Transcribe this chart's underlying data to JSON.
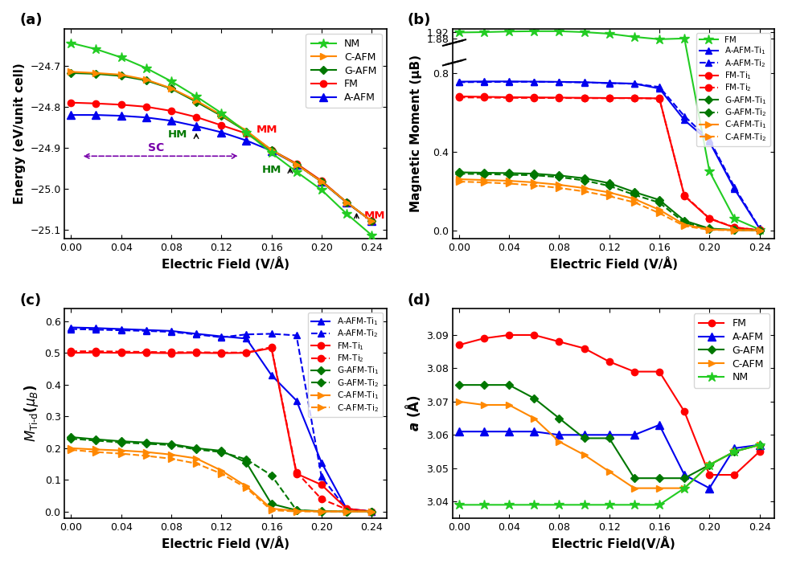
{
  "ef": [
    0.0,
    0.02,
    0.04,
    0.06,
    0.08,
    0.1,
    0.12,
    0.14,
    0.16,
    0.18,
    0.2,
    0.22,
    0.24
  ],
  "panel_a": {
    "NM": [
      -24.645,
      -24.66,
      -24.68,
      -24.706,
      -24.738,
      -24.775,
      -24.815,
      -24.862,
      -24.912,
      -24.958,
      -25.002,
      -25.06,
      -25.112
    ],
    "C-AFM": [
      -24.715,
      -24.718,
      -24.722,
      -24.734,
      -24.755,
      -24.785,
      -24.82,
      -24.858,
      -24.905,
      -24.94,
      -24.982,
      -25.032,
      -25.078
    ],
    "G-AFM": [
      -24.718,
      -24.72,
      -24.725,
      -24.736,
      -24.756,
      -24.788,
      -24.822,
      -24.86,
      -24.905,
      -24.94,
      -24.982,
      -25.032,
      -25.078
    ],
    "FM": [
      -24.79,
      -24.792,
      -24.795,
      -24.8,
      -24.81,
      -24.825,
      -24.845,
      -24.865,
      -24.905,
      -24.938,
      -24.98,
      -25.032,
      -25.078
    ],
    "A-AFM": [
      -24.82,
      -24.82,
      -24.822,
      -24.826,
      -24.834,
      -24.847,
      -24.862,
      -24.882,
      -24.907,
      -24.94,
      -24.982,
      -25.033,
      -25.078
    ],
    "xlabel": "Electric Field (V/Å)",
    "ylabel": "Energy (eV/unit cell)",
    "ylim": [
      -25.12,
      -24.61
    ],
    "yticks": [
      -25.1,
      -25.0,
      -24.9,
      -24.8,
      -24.7
    ]
  },
  "panel_b": {
    "FM": [
      1.918,
      1.92,
      1.924,
      1.926,
      1.926,
      1.92,
      1.91,
      1.89,
      1.875,
      1.88,
      0.3,
      0.06,
      0.005
    ],
    "A-AFM-Ti1": [
      0.755,
      0.756,
      0.756,
      0.755,
      0.754,
      0.752,
      0.748,
      0.745,
      0.72,
      0.56,
      0.45,
      0.21,
      0.01
    ],
    "A-AFM-Ti2": [
      0.752,
      0.753,
      0.754,
      0.754,
      0.753,
      0.751,
      0.747,
      0.744,
      0.728,
      0.58,
      0.46,
      0.22,
      0.012
    ],
    "FM-Ti1": [
      0.68,
      0.678,
      0.676,
      0.675,
      0.674,
      0.673,
      0.672,
      0.672,
      0.67,
      0.175,
      0.06,
      0.015,
      0.002
    ],
    "FM-Ti2": [
      0.675,
      0.674,
      0.673,
      0.672,
      0.672,
      0.671,
      0.671,
      0.671,
      0.669,
      0.178,
      0.062,
      0.016,
      0.002
    ],
    "G-AFM-Ti1": [
      0.295,
      0.293,
      0.291,
      0.288,
      0.279,
      0.265,
      0.24,
      0.195,
      0.155,
      0.05,
      0.01,
      0.003,
      0.001
    ],
    "G-AFM-Ti2": [
      0.288,
      0.286,
      0.283,
      0.28,
      0.271,
      0.254,
      0.226,
      0.181,
      0.141,
      0.04,
      0.007,
      0.002,
      0.001
    ],
    "C-AFM-Ti1": [
      0.26,
      0.256,
      0.252,
      0.244,
      0.232,
      0.215,
      0.193,
      0.16,
      0.105,
      0.03,
      0.005,
      0.002,
      0.001
    ],
    "C-AFM-Ti2": [
      0.248,
      0.244,
      0.238,
      0.229,
      0.216,
      0.198,
      0.174,
      0.143,
      0.088,
      0.023,
      0.003,
      0.001,
      0.001
    ],
    "xlabel": "Electric Field (V/Å)",
    "ylabel": "Magnetic Moment (μB)"
  },
  "panel_c": {
    "A-AFM-Ti1": [
      0.58,
      0.578,
      0.575,
      0.572,
      0.569,
      0.56,
      0.552,
      0.545,
      0.43,
      0.35,
      0.155,
      0.01,
      0.001
    ],
    "A-AFM-Ti2": [
      0.575,
      0.573,
      0.571,
      0.569,
      0.566,
      0.558,
      0.549,
      0.558,
      0.56,
      0.555,
      0.11,
      0.008,
      0.001
    ],
    "FM-Ti1": [
      0.5,
      0.501,
      0.5,
      0.5,
      0.499,
      0.5,
      0.499,
      0.5,
      0.515,
      0.12,
      0.085,
      0.01,
      0.001
    ],
    "FM-Ti2": [
      0.505,
      0.505,
      0.504,
      0.503,
      0.502,
      0.502,
      0.501,
      0.501,
      0.518,
      0.125,
      0.04,
      0.008,
      0.001
    ],
    "G-AFM-Ti1": [
      0.235,
      0.228,
      0.222,
      0.218,
      0.213,
      0.2,
      0.192,
      0.155,
      0.025,
      0.005,
      0.002,
      0.001,
      0.001
    ],
    "G-AFM-Ti2": [
      0.23,
      0.224,
      0.218,
      0.214,
      0.21,
      0.196,
      0.188,
      0.165,
      0.115,
      0.005,
      0.001,
      0.001,
      0.001
    ],
    "C-AFM-Ti1": [
      0.2,
      0.196,
      0.193,
      0.188,
      0.18,
      0.168,
      0.13,
      0.08,
      0.01,
      0.003,
      0.001,
      0.001,
      0.001
    ],
    "C-AFM-Ti2": [
      0.195,
      0.188,
      0.183,
      0.176,
      0.167,
      0.152,
      0.12,
      0.075,
      0.005,
      0.001,
      0.001,
      0.001,
      0.001
    ],
    "xlabel": "Electric Field (V/Å)",
    "ylim": [
      -0.02,
      0.64
    ],
    "yticks": [
      0.0,
      0.1,
      0.2,
      0.3,
      0.4,
      0.5,
      0.6
    ]
  },
  "panel_d": {
    "FM": [
      3.087,
      3.089,
      3.09,
      3.09,
      3.088,
      3.086,
      3.082,
      3.079,
      3.079,
      3.067,
      3.048,
      3.048,
      3.055
    ],
    "A-AFM": [
      3.061,
      3.061,
      3.061,
      3.061,
      3.06,
      3.06,
      3.06,
      3.06,
      3.063,
      3.048,
      3.044,
      3.056,
      3.057
    ],
    "G-AFM": [
      3.075,
      3.075,
      3.075,
      3.071,
      3.065,
      3.059,
      3.059,
      3.047,
      3.047,
      3.047,
      3.051,
      3.055,
      3.057
    ],
    "C-AFM": [
      3.07,
      3.069,
      3.069,
      3.065,
      3.058,
      3.054,
      3.049,
      3.044,
      3.044,
      3.044,
      3.051,
      3.055,
      3.057
    ],
    "NM": [
      3.039,
      3.039,
      3.039,
      3.039,
      3.039,
      3.039,
      3.039,
      3.039,
      3.039,
      3.044,
      3.051,
      3.055,
      3.057
    ],
    "xlabel": "Electric Field(V/Å)",
    "ylabel": "a (Å)",
    "ylim": [
      3.035,
      3.098
    ],
    "yticks": [
      3.04,
      3.05,
      3.06,
      3.07,
      3.08,
      3.09
    ]
  }
}
